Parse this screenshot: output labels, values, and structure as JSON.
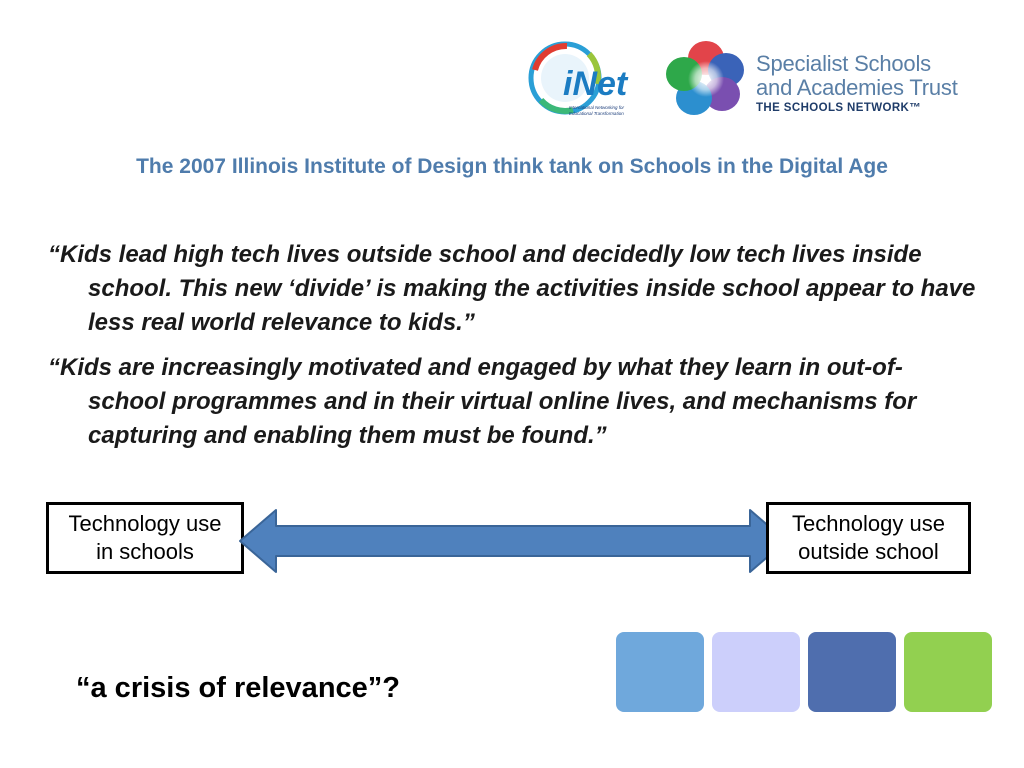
{
  "logos": {
    "inet": {
      "name": "iNet",
      "tagline": "International Networking for Educational Transformation"
    },
    "ssat": {
      "line1": "Specialist Schools",
      "line2": "and Academies Trust",
      "network": "THE SCHOOLS NETWORK™"
    }
  },
  "subtitle": "The 2007 Illinois Institute of Design think tank on Schools in the Digital Age",
  "quotes": [
    "“Kids lead high tech lives outside school and decidedly low tech lives inside school.  This new ‘divide’ is making the activities inside school appear to have less real world relevance to kids.”",
    "“Kids are increasingly motivated and engaged by what they learn in out-of-school programmes and in their virtual online lives, and mechanisms for capturing and enabling them must be found.”"
  ],
  "diagram": {
    "left_box_line1": "Technology use",
    "left_box_line2": "in schools",
    "right_box_line1": "Technology use",
    "right_box_line2": "outside school"
  },
  "closing_question": "“a crisis of relevance”?",
  "colors": {
    "heading_blue": "#4f7cac",
    "arrow_fill": "#4f81bd",
    "squares": [
      "#6fa8dc",
      "#cccffb",
      "#4f6eae",
      "#92d050"
    ]
  }
}
